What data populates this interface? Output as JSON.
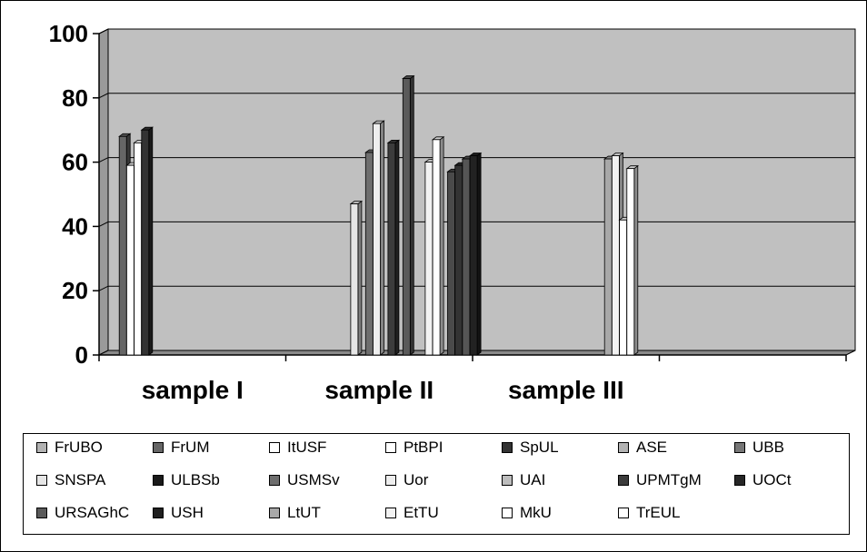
{
  "chart_data": {
    "type": "bar",
    "title": "",
    "xlabel": "",
    "ylabel": "",
    "ylim": [
      0,
      100
    ],
    "yticks": [
      "0",
      "20",
      "40",
      "60",
      "80",
      "100"
    ],
    "grid": true,
    "legend_position": "bottom",
    "categories": [
      "sample I",
      "sample II",
      "sample III",
      ""
    ],
    "series": [
      {
        "name": "FrUBO",
        "color": "#b3b3b3",
        "values": [
          null,
          null,
          null,
          null
        ]
      },
      {
        "name": "FrUM",
        "color": "#666666",
        "values": [
          68,
          null,
          null,
          null
        ]
      },
      {
        "name": "ItUSF",
        "color": "#ffffff",
        "values": [
          59,
          null,
          null,
          null
        ]
      },
      {
        "name": "PtBPI",
        "color": "#ffffff",
        "values": [
          66,
          null,
          null,
          null
        ]
      },
      {
        "name": "SpUL",
        "color": "#333333",
        "values": [
          70,
          null,
          null,
          null
        ]
      },
      {
        "name": "ASE",
        "color": "#b3b3b3",
        "values": [
          null,
          null,
          null,
          null
        ]
      },
      {
        "name": "UBB",
        "color": "#777777",
        "values": [
          null,
          null,
          null,
          null
        ]
      },
      {
        "name": "SNSPA",
        "color": "#e6e6e6",
        "values": [
          null,
          47,
          null,
          null
        ]
      },
      {
        "name": "ULBSb",
        "color": "#1a1a1a",
        "values": [
          null,
          null,
          null,
          null
        ]
      },
      {
        "name": "USMSv",
        "color": "#6e6e6e",
        "values": [
          null,
          63,
          null,
          null
        ]
      },
      {
        "name": "Uor",
        "color": "#eeeeee",
        "values": [
          null,
          72,
          null,
          null
        ]
      },
      {
        "name": "UAI",
        "color": "#bdbdbd",
        "values": [
          null,
          null,
          null,
          null
        ]
      },
      {
        "name": "UPMTgM",
        "color": "#3c3c3c",
        "values": [
          null,
          66,
          null,
          null
        ]
      },
      {
        "name": "UOCt",
        "color": "#262626",
        "values": [
          null,
          null,
          null,
          null
        ]
      },
      {
        "name": "URSAGhC",
        "color": "#5a5a5a",
        "values": [
          null,
          86,
          null,
          null
        ]
      },
      {
        "name": "USH",
        "color": "#202020",
        "values": [
          null,
          null,
          null,
          null
        ]
      },
      {
        "name": "LtUT",
        "color": "#a8a8a8",
        "values": [
          null,
          null,
          61,
          null
        ]
      },
      {
        "name": "EtTU",
        "color": "#f2f2f2",
        "values": [
          null,
          60,
          62,
          null
        ]
      },
      {
        "name": "MkU",
        "color": "#ffffff",
        "values": [
          null,
          67,
          42,
          null
        ]
      },
      {
        "name": "TrEUL",
        "color": "#ffffff",
        "values": [
          null,
          null,
          58,
          null
        ]
      },
      {
        "name": "",
        "color": "#4a4a4a",
        "values": [
          null,
          57,
          null,
          null
        ]
      },
      {
        "name": "",
        "color": "#333333",
        "values": [
          null,
          59,
          null,
          null
        ]
      },
      {
        "name": "",
        "color": "#555555",
        "values": [
          null,
          61,
          null,
          null
        ]
      },
      {
        "name": "",
        "color": "#222222",
        "values": [
          null,
          62,
          null,
          null
        ]
      }
    ]
  }
}
